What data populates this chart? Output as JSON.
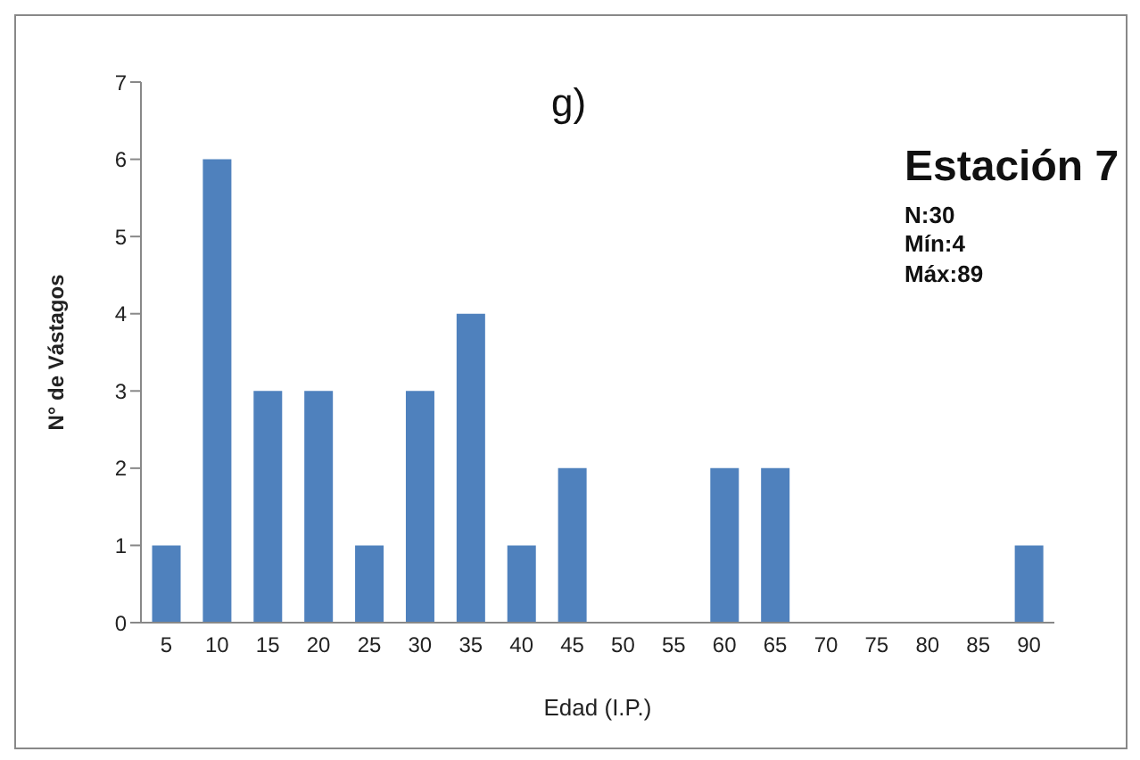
{
  "chart_data": {
    "type": "bar",
    "title": "g)",
    "xlabel": "Edad (I.P.)",
    "ylabel": "N° de Vástagos",
    "categories": [
      "5",
      "10",
      "15",
      "20",
      "25",
      "30",
      "35",
      "40",
      "45",
      "50",
      "55",
      "60",
      "65",
      "70",
      "75",
      "80",
      "85",
      "90"
    ],
    "values": [
      1,
      6,
      3,
      3,
      1,
      3,
      4,
      1,
      2,
      0,
      0,
      2,
      2,
      0,
      0,
      0,
      0,
      1
    ],
    "color": "#4f81bd",
    "ylim": [
      0,
      7
    ],
    "yticks": [
      0,
      1,
      2,
      3,
      4,
      5,
      6,
      7
    ],
    "grid": false,
    "legend": false,
    "annotations": [
      "Estación 7",
      "N:30",
      "Mín:4",
      "Máx:89"
    ]
  }
}
